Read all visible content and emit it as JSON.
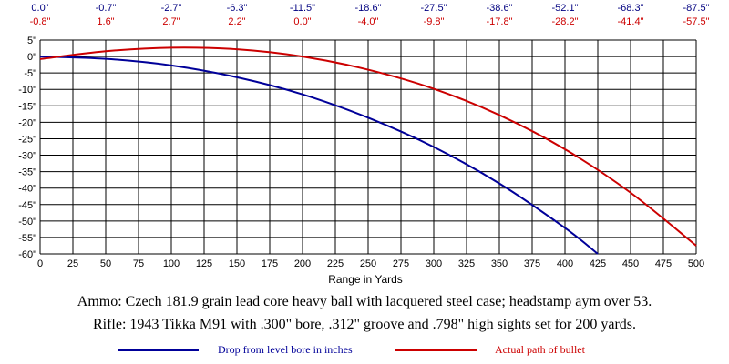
{
  "chart_data": {
    "type": "line",
    "xlabel": "Range in Yards",
    "ylabel": "",
    "xlim": [
      0,
      500
    ],
    "ylim": [
      -60,
      5
    ],
    "x_ticks": [
      "0",
      "25",
      "50",
      "75",
      "100",
      "125",
      "150",
      "175",
      "200",
      "225",
      "250",
      "275",
      "300",
      "325",
      "350",
      "375",
      "400",
      "425",
      "450",
      "475",
      "500"
    ],
    "y_ticks": [
      "5\"",
      "0\"",
      "-5\"",
      "-10\"",
      "-15\"",
      "-20\"",
      "-25\"",
      "-30\"",
      "-35\"",
      "-40\"",
      "-45\"",
      "-50\"",
      "-55\"",
      "-60\""
    ],
    "grid": true,
    "top_labels_x": [
      0,
      50,
      100,
      150,
      200,
      250,
      300,
      350,
      400,
      450,
      500
    ],
    "top_drop_labels": [
      "0.0\"",
      "-0.7\"",
      "-2.7\"",
      "-6.3\"",
      "-11.5\"",
      "-18.6\"",
      "-27.5\"",
      "-38.6\"",
      "-52.1\"",
      "-68.3\"",
      "-87.5\""
    ],
    "top_path_labels": [
      "-0.8\"",
      "1.6\"",
      "2.7\"",
      "2.2\"",
      "0.0\"",
      "-4.0\"",
      "-9.8\"",
      "-17.8\"",
      "-28.2\"",
      "-41.4\"",
      "-57.5\""
    ],
    "series": [
      {
        "name": "Drop from level bore in inches",
        "color": "#000099",
        "x": [
          0,
          50,
          100,
          150,
          200,
          250,
          300,
          350,
          400,
          425
        ],
        "y": [
          0.0,
          -0.7,
          -2.7,
          -6.3,
          -11.5,
          -18.6,
          -27.5,
          -38.6,
          -52.1,
          -60.0
        ]
      },
      {
        "name": "Actual path of bullet",
        "color": "#cc0000",
        "x": [
          0,
          50,
          100,
          150,
          200,
          250,
          300,
          350,
          400,
          450,
          500
        ],
        "y": [
          -0.8,
          1.6,
          2.7,
          2.2,
          0.0,
          -4.0,
          -9.8,
          -17.8,
          -28.2,
          -41.4,
          -57.5
        ]
      }
    ]
  },
  "caption_ammo": "Ammo:  Czech 181.9 grain lead core heavy ball with lacquered steel case; headstamp aym over 53.",
  "caption_rifle": "Rifle:  1943 Tikka M91 with .300\" bore, .312\" groove and .798\" high sights set for 200 yards.",
  "legend": {
    "drop_label": "Drop from level bore in inches",
    "path_label": "Actual path of bullet"
  }
}
